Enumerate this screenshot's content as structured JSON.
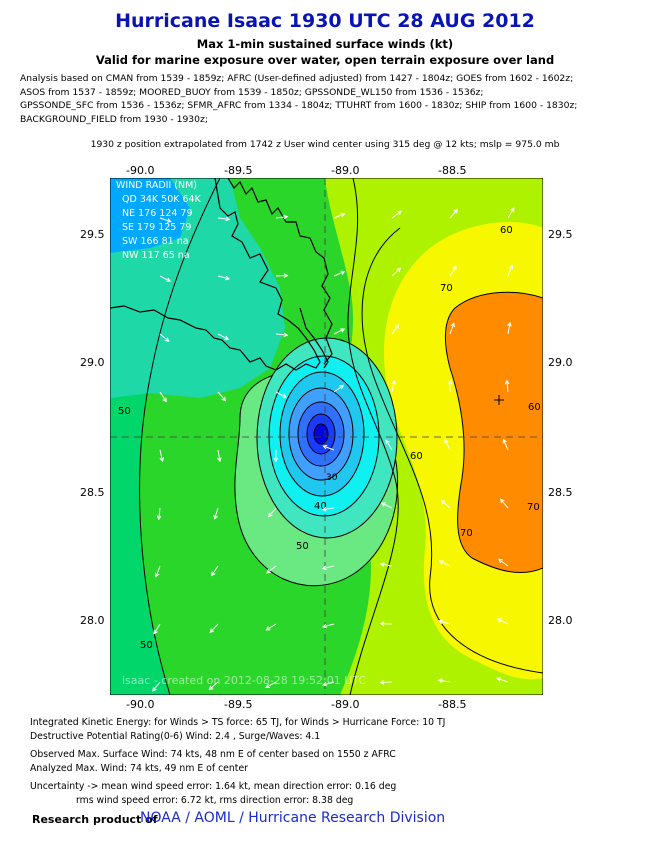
{
  "header": {
    "title": "Hurricane Isaac 1930 UTC 28 AUG 2012",
    "subtitle1": "Max 1-min sustained surface winds (kt)",
    "subtitle2": "Valid for marine exposure over water, open terrain exposure over land"
  },
  "analysis_lines": [
    "Analysis based on CMAN from 1539 - 1859z; AFRC (User-defined adjusted) from 1427 - 1804z; GOES from 1602 - 1602z;",
    "ASOS from 1537 - 1859z; MOORED_BUOY from 1539 - 1850z; GPSSONDE_WL150 from 1536 - 1536z;",
    "GPSSONDE_SFC from 1536 - 1536z; SFMR_AFRC from 1334 - 1804z; TTUHRT from 1600 - 1830z; SHIP from 1600 - 1830z;",
    "BACKGROUND_FIELD from 1930 - 1930z;"
  ],
  "extrapolation": "1930 z position extrapolated from 1742 z User wind center using 315 deg @ 12 kts; mslp = 975.0 mb",
  "map": {
    "lon_ticks": [
      "-90.0",
      "-89.5",
      "-89.0",
      "-88.5"
    ],
    "lat_ticks": [
      "29.5",
      "29.0",
      "28.5",
      "28.0"
    ],
    "center": {
      "lon": -89.1,
      "lat": 28.71
    },
    "max_wind_marker": {
      "lon": -88.35,
      "lat": 28.85
    },
    "contour_labels": [
      "60",
      "70",
      "50",
      "60",
      "70",
      "50",
      "50",
      "40",
      "30",
      "60",
      "70"
    ],
    "wind_radii": {
      "title": "WIND RADII (NM)",
      "header": "QD 34K 50K 64K",
      "rows": [
        "NE 176 124  79",
        "SE 179 125  79",
        "SW 166  81  na",
        "NW 117  65  na"
      ]
    },
    "watermark": "isaac - created on 2012-08-28 19:52:01 UTC",
    "colors": {
      "ocean_bg": "#25d025",
      "land_bg": "#00a0ff",
      "eye": "#0000e0",
      "max_wind": "#ff8800",
      "yellow": "#ffff00"
    }
  },
  "footer": {
    "ike": "Integrated Kinetic Energy: for Winds > TS force: 65 TJ, for Winds > Hurricane Force: 10 TJ",
    "dpr": "Destructive Potential Rating(0-6)  Wind: 2.4 , Surge/Waves: 4.1",
    "obs": "Observed Max. Surface Wind: 74 kts, 48 nm E of center based on 1550 z AFRC",
    "ana": "Analyzed Max. Wind: 74 kts, 49 nm  E of center",
    "unc1": "Uncertainty -> mean wind speed error: 1.64 kt, mean direction error: 0.16 deg",
    "unc2": "rms wind speed error: 6.72 kt, rms direction error: 8.38 deg",
    "research": "Research product of",
    "noaa": "NOAA  /  AOML  /  Hurricane Research Division"
  }
}
